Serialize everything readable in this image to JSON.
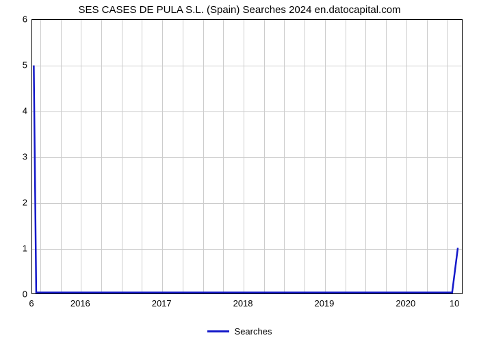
{
  "chart": {
    "type": "line",
    "title": "SES CASES DE PULA S.L. (Spain) Searches 2024 en.datocapital.com",
    "title_fontsize": 15,
    "title_color": "#000000",
    "background_color": "#ffffff",
    "plot_border_color": "#000000",
    "grid_color": "#cccccc",
    "line_color": "#1318c9",
    "line_width": 2.5,
    "xlim": [
      2015.4,
      2020.7
    ],
    "ylim": [
      0,
      6
    ],
    "ytick_step": 1,
    "y_ticks": [
      0,
      1,
      2,
      3,
      4,
      5,
      6
    ],
    "x_ticks": [
      2016,
      2017,
      2018,
      2019,
      2020
    ],
    "x_minor_count_between": 3,
    "secondary_x_left": "6",
    "secondary_x_right": "10",
    "secondary_x_right_pos": 2020.6,
    "data": {
      "x": [
        2015.42,
        2015.45,
        2015.55,
        2020.5,
        2020.58,
        2020.65
      ],
      "y": [
        5.0,
        0.02,
        0.02,
        0.02,
        0.02,
        1.0
      ]
    },
    "legend": {
      "label": "Searches",
      "swatch_color": "#1318c9"
    }
  }
}
